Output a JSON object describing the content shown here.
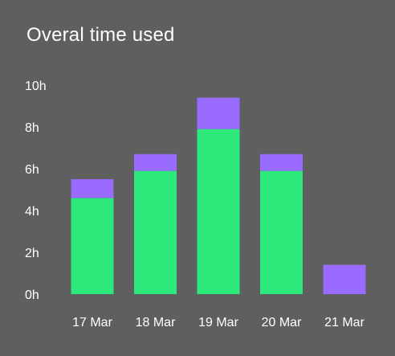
{
  "title": "Overal time used",
  "colors": {
    "background": "#5f5f5f",
    "base": "#2de87a",
    "top": "#9a6bff",
    "text": "#ffffff"
  },
  "chart_data": {
    "type": "bar",
    "stacked": true,
    "categories": [
      "17 Mar",
      "18 Mar",
      "19 Mar",
      "20 Mar",
      "21 Mar"
    ],
    "series": [
      {
        "values": [
          4.6,
          5.9,
          7.9,
          5.9,
          0
        ]
      },
      {
        "values": [
          0.9,
          0.8,
          1.5,
          0.8,
          1.4
        ]
      }
    ],
    "yticks": [
      "0h",
      "2h",
      "4h",
      "6h",
      "8h",
      "10h"
    ],
    "ylim": [
      0,
      10
    ],
    "grid": false
  }
}
